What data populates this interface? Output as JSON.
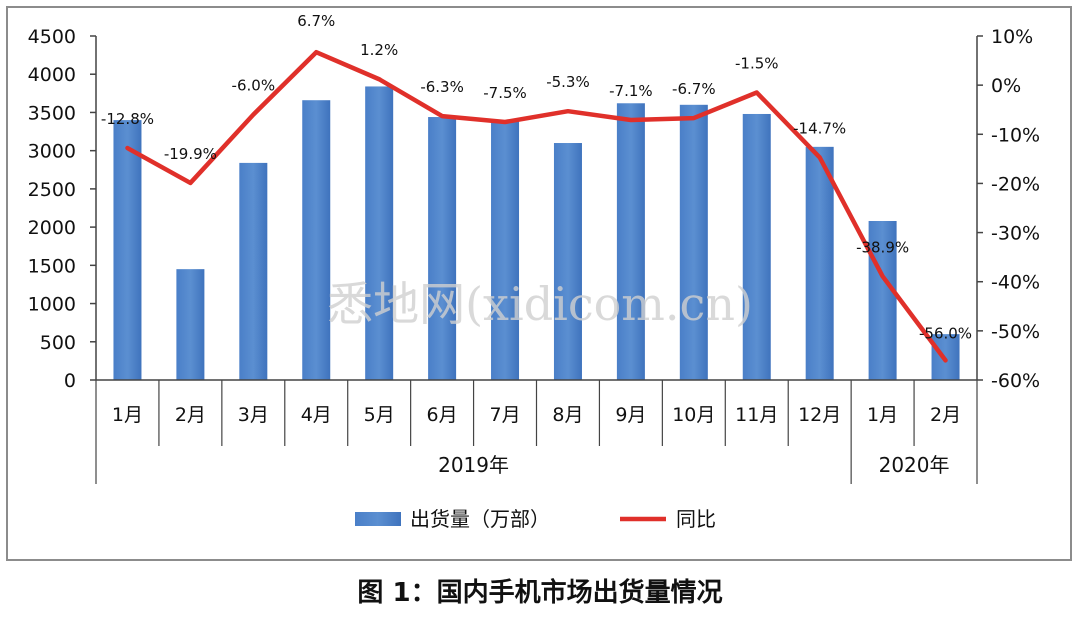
{
  "caption": "图 1：国内手机市场出货量情况",
  "watermark": "悉地网(xidicom.cn)",
  "chart_data": {
    "type": "bar+line",
    "categories": [
      "1月",
      "2月",
      "3月",
      "4月",
      "5月",
      "6月",
      "7月",
      "8月",
      "9月",
      "10月",
      "11月",
      "12月",
      "1月",
      "2月"
    ],
    "groups": [
      {
        "label": "2019年",
        "from": 0,
        "to": 11
      },
      {
        "label": "2020年",
        "from": 12,
        "to": 13
      }
    ],
    "series": [
      {
        "name": "出货量（万部）",
        "type": "bar",
        "axis": "left",
        "color": "#5b8fd1",
        "values": [
          3400,
          1450,
          2840,
          3660,
          3840,
          3440,
          3390,
          3100,
          3620,
          3600,
          3480,
          3050,
          2080,
          600
        ]
      },
      {
        "name": "同比",
        "type": "line",
        "axis": "right",
        "color": "#e0302a",
        "values": [
          -12.8,
          -19.9,
          -6.0,
          6.7,
          1.2,
          -6.3,
          -7.5,
          -5.3,
          -7.1,
          -6.7,
          -1.5,
          -14.7,
          -38.9,
          -56.0
        ],
        "labels": [
          "-12.8%",
          "-19.9%",
          "-6.0%",
          "6.7%",
          "1.2%",
          "-6.3%",
          "-7.5%",
          "-5.3%",
          "-7.1%",
          "-6.7%",
          "-1.5%",
          "-14.7%",
          "-38.9%",
          "-56.0%"
        ]
      }
    ],
    "left_axis": {
      "ylim": [
        0,
        4500
      ],
      "ticks": [
        "0",
        "500",
        "1000",
        "1500",
        "2000",
        "2500",
        "3000",
        "3500",
        "4000",
        "4500"
      ]
    },
    "right_axis": {
      "ylim": [
        -60,
        10
      ],
      "ticks": [
        "-60%",
        "-50%",
        "-40%",
        "-30%",
        "-20%",
        "-10%",
        "0%",
        "10%"
      ]
    },
    "legend_position": "bottom"
  }
}
